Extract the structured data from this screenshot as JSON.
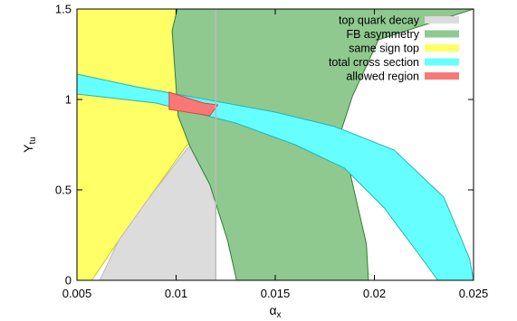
{
  "chart_data": {
    "type": "area",
    "title": "",
    "xlabel": "α",
    "xlabel_sub": "x",
    "ylabel": "Y",
    "ylabel_sub": "tu",
    "xlim": [
      0.005,
      0.025
    ],
    "ylim": [
      0,
      1.5
    ],
    "xticks": [
      "0.005",
      "0.01",
      "0.015",
      "0.02",
      "0.025"
    ],
    "yticks": [
      "0",
      "0.5",
      "1",
      "1.5"
    ],
    "grid": false,
    "legend_position": "top-right",
    "regions": [
      {
        "name": "same sign top",
        "color": "#ffff66",
        "outline": "#c9c900",
        "polygon": [
          [
            0.005,
            0
          ],
          [
            0.00575,
            0
          ],
          [
            0.0071,
            0.22
          ],
          [
            0.0086,
            0.45
          ],
          [
            0.0105,
            0.74
          ],
          [
            0.0125,
            0.93
          ],
          [
            0.0134,
            1.08
          ],
          [
            0.0134,
            1.34
          ],
          [
            0.0121,
            1.44
          ],
          [
            0.0109,
            1.5
          ],
          [
            0.005,
            1.5
          ]
        ]
      },
      {
        "name": "top quark decay",
        "color": "#dcdcdc",
        "outline": "#bbbbbb",
        "polygon": [
          [
            0.00615,
            0
          ],
          [
            0.012,
            0
          ],
          [
            0.012,
            1.5
          ],
          [
            0.012,
            0.9
          ],
          [
            0.0105,
            0.72
          ],
          [
            0.0086,
            0.45
          ],
          [
            0.0071,
            0.22
          ]
        ]
      },
      {
        "name": "FB asymmetry",
        "color": "#8fc98f",
        "outline": "#2f7f2f",
        "polygon": [
          [
            0.01305,
            0
          ],
          [
            0.0197,
            0
          ],
          [
            0.0196,
            0.2
          ],
          [
            0.0183,
            0.82
          ],
          [
            0.0189,
            1.02
          ],
          [
            0.0202,
            1.33
          ],
          [
            0.025,
            1.5
          ],
          [
            0.0117,
            1.5
          ],
          [
            0.0101,
            1.52
          ],
          [
            0.0098,
            1.38
          ],
          [
            0.0101,
            0.91
          ],
          [
            0.0107,
            0.74
          ],
          [
            0.0117,
            0.53
          ],
          [
            0.0126,
            0.22
          ]
        ]
      },
      {
        "name": "total cross section",
        "color": "#66ffff",
        "outline": "#22b5b5",
        "polygon": [
          [
            0.005,
            1.14
          ],
          [
            0.008,
            1.07
          ],
          [
            0.012,
            0.99
          ],
          [
            0.015,
            0.93
          ],
          [
            0.018,
            0.85
          ],
          [
            0.021,
            0.72
          ],
          [
            0.0235,
            0.46
          ],
          [
            0.0248,
            0.12
          ],
          [
            0.025,
            0
          ],
          [
            0.0232,
            0
          ],
          [
            0.0222,
            0.15
          ],
          [
            0.0205,
            0.4
          ],
          [
            0.0185,
            0.62
          ],
          [
            0.016,
            0.75
          ],
          [
            0.013,
            0.87
          ],
          [
            0.009,
            0.98
          ],
          [
            0.005,
            1.03
          ]
        ]
      },
      {
        "name": "allowed region",
        "color": "#f87878",
        "outline": "#d04848",
        "polygon": [
          [
            0.00965,
            1.04
          ],
          [
            0.0114,
            0.98
          ],
          [
            0.0121,
            0.97
          ],
          [
            0.0117,
            0.91
          ],
          [
            0.00965,
            0.945
          ]
        ]
      }
    ],
    "vertical_line": {
      "x": 0.012,
      "color": "#bbbbbb"
    },
    "legend": [
      {
        "label": "top quark decay",
        "color": "#dcdcdc"
      },
      {
        "label": "FB asymmetry",
        "color": "#8fc98f"
      },
      {
        "label": "same sign top",
        "color": "#ffff66"
      },
      {
        "label": "total cross section",
        "color": "#66ffff"
      },
      {
        "label": "allowed region",
        "color": "#f87878"
      }
    ]
  }
}
